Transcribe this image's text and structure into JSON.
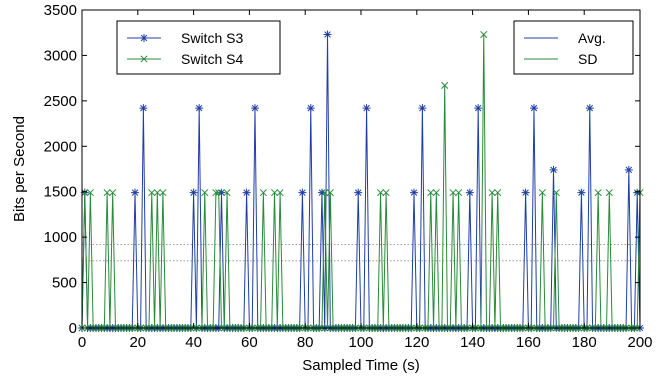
{
  "chart_data": {
    "type": "line",
    "title": "",
    "xlabel": "Sampled Time (s)",
    "ylabel": "Bits per Second",
    "xlim": [
      0,
      200
    ],
    "ylim": [
      0,
      3500
    ],
    "xticks": [
      0,
      20,
      40,
      60,
      80,
      100,
      120,
      140,
      160,
      180,
      200
    ],
    "yticks": [
      0,
      500,
      1000,
      1500,
      2000,
      2500,
      3000,
      3500
    ],
    "grid": false,
    "series": [
      {
        "name": "Switch S3",
        "color": "#1f3fa6",
        "marker": "asterisk",
        "points": [
          [
            0,
            0
          ],
          [
            1,
            1490
          ],
          [
            2,
            0
          ],
          [
            18,
            0
          ],
          [
            19,
            1490
          ],
          [
            20,
            0
          ],
          [
            21,
            0
          ],
          [
            22,
            2420
          ],
          [
            23,
            0
          ],
          [
            39,
            0
          ],
          [
            40,
            1490
          ],
          [
            41,
            0
          ],
          [
            42,
            2420
          ],
          [
            43,
            0
          ],
          [
            49,
            0
          ],
          [
            50,
            1490
          ],
          [
            51,
            0
          ],
          [
            58,
            0
          ],
          [
            59,
            1490
          ],
          [
            60,
            0
          ],
          [
            61,
            0
          ],
          [
            62,
            2420
          ],
          [
            63,
            0
          ],
          [
            78,
            0
          ],
          [
            79,
            1490
          ],
          [
            80,
            0
          ],
          [
            81,
            0
          ],
          [
            82,
            2420
          ],
          [
            83,
            0
          ],
          [
            85,
            0
          ],
          [
            86,
            1490
          ],
          [
            87,
            0
          ],
          [
            88,
            3230
          ],
          [
            89,
            0
          ],
          [
            98,
            0
          ],
          [
            99,
            1490
          ],
          [
            100,
            0
          ],
          [
            101,
            0
          ],
          [
            102,
            2420
          ],
          [
            103,
            0
          ],
          [
            118,
            0
          ],
          [
            119,
            1490
          ],
          [
            120,
            0
          ],
          [
            121,
            0
          ],
          [
            122,
            2420
          ],
          [
            123,
            0
          ],
          [
            138,
            0
          ],
          [
            139,
            1490
          ],
          [
            140,
            0
          ],
          [
            141,
            0
          ],
          [
            142,
            2420
          ],
          [
            143,
            0
          ],
          [
            158,
            0
          ],
          [
            159,
            1490
          ],
          [
            160,
            0
          ],
          [
            161,
            0
          ],
          [
            162,
            2420
          ],
          [
            163,
            0
          ],
          [
            168,
            0
          ],
          [
            169,
            1740
          ],
          [
            170,
            0
          ],
          [
            178,
            0
          ],
          [
            179,
            1490
          ],
          [
            180,
            0
          ],
          [
            181,
            0
          ],
          [
            182,
            2420
          ],
          [
            183,
            0
          ],
          [
            195,
            0
          ],
          [
            196,
            1740
          ],
          [
            197,
            0
          ],
          [
            198,
            0
          ],
          [
            199,
            1490
          ],
          [
            200,
            0
          ]
        ]
      },
      {
        "name": "Switch S4",
        "color": "#2a8a3c",
        "marker": "x",
        "points": [
          [
            0,
            0
          ],
          [
            1,
            1490
          ],
          [
            2,
            0
          ],
          [
            3,
            1490
          ],
          [
            4,
            0
          ],
          [
            8,
            0
          ],
          [
            9,
            1490
          ],
          [
            10,
            0
          ],
          [
            11,
            1490
          ],
          [
            12,
            0
          ],
          [
            24,
            0
          ],
          [
            25,
            1490
          ],
          [
            26,
            0
          ],
          [
            27,
            1490
          ],
          [
            28,
            0
          ],
          [
            29,
            1490
          ],
          [
            30,
            0
          ],
          [
            43,
            0
          ],
          [
            44,
            1490
          ],
          [
            45,
            0
          ],
          [
            47,
            0
          ],
          [
            48,
            1490
          ],
          [
            49,
            1490
          ],
          [
            50,
            0
          ],
          [
            51,
            0
          ],
          [
            52,
            1490
          ],
          [
            53,
            0
          ],
          [
            64,
            0
          ],
          [
            65,
            1490
          ],
          [
            66,
            0
          ],
          [
            68,
            0
          ],
          [
            69,
            1490
          ],
          [
            70,
            0
          ],
          [
            71,
            1490
          ],
          [
            72,
            0
          ],
          [
            86,
            0
          ],
          [
            87,
            1490
          ],
          [
            88,
            0
          ],
          [
            89,
            1490
          ],
          [
            90,
            0
          ],
          [
            106,
            0
          ],
          [
            107,
            1490
          ],
          [
            108,
            0
          ],
          [
            109,
            1490
          ],
          [
            110,
            0
          ],
          [
            124,
            0
          ],
          [
            125,
            1490
          ],
          [
            126,
            0
          ],
          [
            127,
            1490
          ],
          [
            128,
            0
          ],
          [
            129,
            0
          ],
          [
            130,
            2670
          ],
          [
            131,
            0
          ],
          [
            132,
            0
          ],
          [
            133,
            1490
          ],
          [
            134,
            0
          ],
          [
            135,
            1490
          ],
          [
            136,
            0
          ],
          [
            143,
            0
          ],
          [
            144,
            3230
          ],
          [
            145,
            0
          ],
          [
            146,
            0
          ],
          [
            147,
            1490
          ],
          [
            148,
            0
          ],
          [
            149,
            1490
          ],
          [
            150,
            0
          ],
          [
            164,
            0
          ],
          [
            165,
            1490
          ],
          [
            166,
            0
          ],
          [
            169,
            0
          ],
          [
            170,
            1490
          ],
          [
            171,
            0
          ],
          [
            184,
            0
          ],
          [
            185,
            1490
          ],
          [
            186,
            0
          ],
          [
            188,
            0
          ],
          [
            189,
            1490
          ],
          [
            190,
            0
          ],
          [
            199,
            0
          ],
          [
            200,
            1490
          ]
        ]
      }
    ],
    "reference_lines": [
      {
        "name": "Avg.",
        "y": 740,
        "color": "#1f3fa6",
        "style": "dotted"
      },
      {
        "name": "SD",
        "y": 920,
        "color": "#2a8a3c",
        "style": "dotted"
      }
    ],
    "legends": [
      {
        "placement": "top-left",
        "entries": [
          "Switch S3",
          "Switch S4"
        ]
      },
      {
        "placement": "top-right",
        "entries": [
          "Avg.",
          "SD"
        ]
      }
    ]
  }
}
